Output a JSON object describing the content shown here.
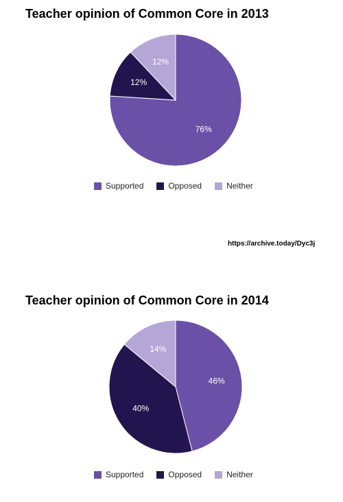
{
  "source_url": "https://archive.today/Dyc3j",
  "chart_data": [
    {
      "type": "pie",
      "title": "Teacher opinion of Common Core in 2013",
      "categories": [
        "Supported",
        "Opposed",
        "Neither"
      ],
      "values": [
        76,
        12,
        12
      ],
      "labels": [
        "76%",
        "12%",
        "12%"
      ],
      "colors": [
        "#6a50a7",
        "#22154f",
        "#b4a6d6"
      ],
      "legend_position": "bottom"
    },
    {
      "type": "pie",
      "title": "Teacher opinion of Common Core in 2014",
      "categories": [
        "Supported",
        "Opposed",
        "Neither"
      ],
      "values": [
        46,
        40,
        14
      ],
      "labels": [
        "46%",
        "40%",
        "14%"
      ],
      "colors": [
        "#6a50a7",
        "#22154f",
        "#b4a6d6"
      ],
      "legend_position": "bottom"
    }
  ]
}
